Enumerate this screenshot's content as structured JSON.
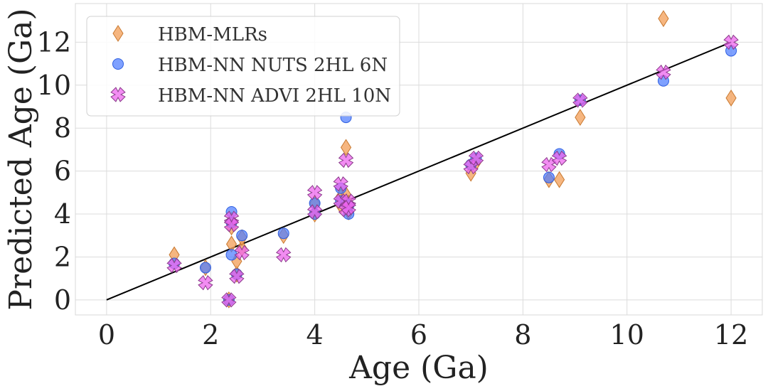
{
  "chart_data": {
    "type": "scatter",
    "title": "",
    "xlabel": "Age (Ga)",
    "ylabel": "Predicted Age (Ga)",
    "xlim": [
      -0.6,
      12.6
    ],
    "ylim": [
      -0.7,
      13.8
    ],
    "xticks": [
      0,
      2,
      4,
      6,
      8,
      10,
      12
    ],
    "yticks": [
      0,
      2,
      4,
      6,
      8,
      10,
      12
    ],
    "grid": true,
    "legend_position": "top-left",
    "reference_line": {
      "name": "identity",
      "x": [
        0,
        12
      ],
      "y": [
        0,
        12
      ],
      "color": "#000000"
    },
    "series": [
      {
        "name": "HBM-MLRs",
        "marker": "diamond",
        "color": "#f4a460",
        "edge": "#c8782f",
        "points": [
          [
            1.3,
            2.1
          ],
          [
            1.9,
            1.5
          ],
          [
            2.35,
            0.0
          ],
          [
            2.4,
            2.6
          ],
          [
            2.4,
            3.4
          ],
          [
            2.4,
            3.7
          ],
          [
            2.5,
            1.2
          ],
          [
            2.5,
            1.8
          ],
          [
            2.6,
            2.4
          ],
          [
            2.6,
            2.9
          ],
          [
            3.4,
            3.0
          ],
          [
            4.0,
            4.0
          ],
          [
            4.0,
            4.5
          ],
          [
            4.5,
            4.4
          ],
          [
            4.5,
            4.8
          ],
          [
            4.6,
            7.1
          ],
          [
            4.6,
            4.9
          ],
          [
            4.65,
            4.1
          ],
          [
            4.65,
            4.5
          ],
          [
            7.0,
            5.9
          ],
          [
            7.1,
            6.4
          ],
          [
            8.5,
            5.6
          ],
          [
            8.7,
            5.6
          ],
          [
            9.1,
            8.5
          ],
          [
            10.7,
            13.1
          ],
          [
            12.0,
            9.4
          ]
        ]
      },
      {
        "name": "HBM-NN NUTS 2HL 6N",
        "marker": "circle",
        "color": "#4d7dff",
        "edge": "#2f5fe0",
        "points": [
          [
            1.3,
            1.7
          ],
          [
            1.9,
            1.5
          ],
          [
            2.35,
            0.0
          ],
          [
            2.4,
            4.1
          ],
          [
            2.4,
            3.6
          ],
          [
            2.4,
            2.1
          ],
          [
            2.5,
            1.2
          ],
          [
            2.6,
            3.0
          ],
          [
            3.4,
            3.1
          ],
          [
            4.0,
            4.0
          ],
          [
            4.0,
            4.5
          ],
          [
            4.5,
            5.2
          ],
          [
            4.5,
            4.6
          ],
          [
            4.6,
            8.5
          ],
          [
            4.6,
            4.5
          ],
          [
            4.65,
            4.0
          ],
          [
            4.65,
            4.4
          ],
          [
            7.0,
            6.3
          ],
          [
            7.1,
            6.6
          ],
          [
            8.5,
            5.7
          ],
          [
            8.7,
            6.8
          ],
          [
            9.1,
            9.3
          ],
          [
            10.7,
            10.2
          ],
          [
            12.0,
            11.6
          ]
        ]
      },
      {
        "name": "HBM-NN ADVI 2HL 10N",
        "marker": "x",
        "color": "#ee66ee",
        "edge": "#8a3a8a",
        "points": [
          [
            1.3,
            1.6
          ],
          [
            1.9,
            0.8
          ],
          [
            2.35,
            0.0
          ],
          [
            2.4,
            3.8
          ],
          [
            2.4,
            3.5
          ],
          [
            2.5,
            1.1
          ],
          [
            2.6,
            2.2
          ],
          [
            3.4,
            2.1
          ],
          [
            4.0,
            5.0
          ],
          [
            4.0,
            4.1
          ],
          [
            4.5,
            5.4
          ],
          [
            4.5,
            4.6
          ],
          [
            4.6,
            6.5
          ],
          [
            4.6,
            4.2
          ],
          [
            4.65,
            4.6
          ],
          [
            4.65,
            4.3
          ],
          [
            7.0,
            6.2
          ],
          [
            7.1,
            6.6
          ],
          [
            8.5,
            6.3
          ],
          [
            8.7,
            6.6
          ],
          [
            9.1,
            9.3
          ],
          [
            10.7,
            10.6
          ],
          [
            12.0,
            12.0
          ]
        ]
      }
    ]
  }
}
